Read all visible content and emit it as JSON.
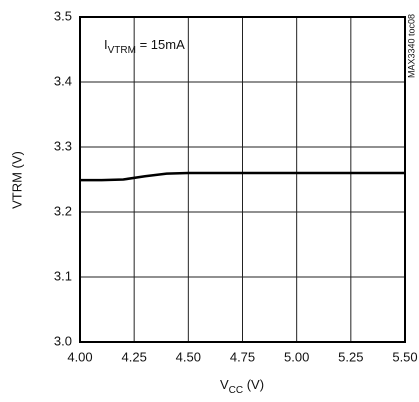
{
  "chart_data": {
    "type": "line",
    "annotation": {
      "main": "I",
      "sub": "VTRM",
      "rest": " = 15mA"
    },
    "side_note": "MAX3340 toc08",
    "y_label": "VTRM (V)",
    "x_label": {
      "main": "V",
      "sub": "CC",
      "rest": " (V)"
    },
    "x": [
      4.0,
      4.1,
      4.2,
      4.3,
      4.4,
      4.5,
      4.75,
      5.0,
      5.25,
      5.5
    ],
    "series": [
      {
        "name": "VTRM",
        "color": "#000000",
        "values": [
          3.249,
          3.249,
          3.25,
          3.255,
          3.259,
          3.26,
          3.26,
          3.26,
          3.26,
          3.26
        ]
      }
    ],
    "xlim": [
      4.0,
      5.5
    ],
    "xticks": [
      {
        "value": 4.0,
        "label": "4.00"
      },
      4.25,
      {
        "value": 4.5,
        "label": "4.50"
      },
      4.75,
      {
        "value": 5.0,
        "label": "5.00"
      },
      5.25,
      {
        "value": 5.5,
        "label": "5.50"
      }
    ],
    "ylim": [
      3.0,
      3.5
    ],
    "yticks": [
      {
        "value": 3.0,
        "label": "3.0"
      },
      3.1,
      3.2,
      3.3,
      3.4,
      3.5
    ],
    "grid": true
  }
}
